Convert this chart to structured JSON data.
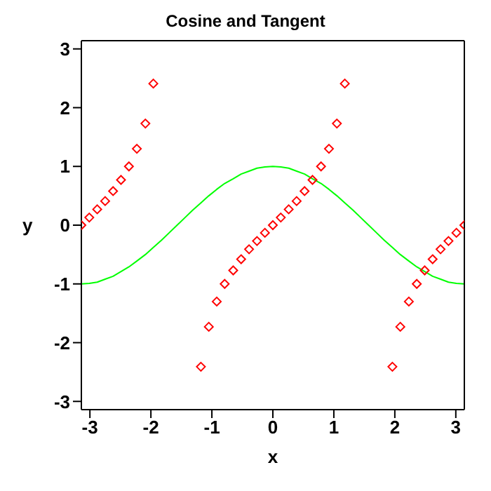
{
  "chart_data": {
    "type": "line",
    "title": "Cosine and Tangent",
    "xlabel": "x",
    "ylabel": "y",
    "x": [
      -3.14,
      -3.01,
      -2.88,
      -2.75,
      -2.62,
      -2.49,
      -2.36,
      -2.23,
      -2.09,
      -1.96,
      -1.83,
      -1.7,
      -1.57,
      -1.44,
      -1.31,
      -1.18,
      -1.05,
      -0.92,
      -0.79,
      -0.65,
      -0.52,
      -0.39,
      -0.26,
      -0.13,
      0,
      0.13,
      0.26,
      0.39,
      0.52,
      0.65,
      0.79,
      0.92,
      1.05,
      1.18,
      1.31,
      1.44,
      1.57,
      1.7,
      1.83,
      1.96,
      2.09,
      2.23,
      2.36,
      2.49,
      2.62,
      2.75,
      2.88,
      3.01,
      3.14
    ],
    "series": [
      {
        "type": "line",
        "color": "#00ff00",
        "marker": "none",
        "values": [
          -1,
          -0.99,
          -0.97,
          -0.92,
          -0.87,
          -0.79,
          -0.71,
          -0.61,
          -0.5,
          -0.38,
          -0.26,
          -0.13,
          0,
          0.13,
          0.26,
          0.38,
          0.5,
          0.61,
          0.71,
          0.79,
          0.87,
          0.92,
          0.97,
          0.99,
          1,
          0.99,
          0.97,
          0.92,
          0.87,
          0.79,
          0.71,
          0.61,
          0.5,
          0.38,
          0.26,
          0.13,
          0,
          -0.13,
          -0.26,
          -0.38,
          -0.5,
          -0.61,
          -0.71,
          -0.79,
          -0.87,
          -0.92,
          -0.97,
          -0.99,
          -1
        ]
      },
      {
        "type": "scatter",
        "color": "#ff0000",
        "marker": "diamond",
        "values": [
          0,
          0.13,
          0.27,
          0.41,
          0.58,
          0.77,
          1,
          1.3,
          1.73,
          2.41,
          null,
          null,
          null,
          null,
          null,
          -2.41,
          -1.73,
          -1.3,
          -1,
          -0.77,
          -0.58,
          -0.41,
          -0.27,
          -0.13,
          0,
          0.13,
          0.27,
          0.41,
          0.58,
          0.77,
          1,
          1.3,
          1.73,
          2.41,
          null,
          null,
          null,
          null,
          null,
          -2.41,
          -1.73,
          -1.3,
          -1,
          -0.77,
          -0.58,
          -0.41,
          -0.27,
          -0.13,
          0
        ]
      }
    ],
    "xlim": [
      -3.14,
      3.14
    ],
    "xticks": [
      -3,
      -2,
      -1,
      0,
      1,
      2,
      3
    ],
    "ylim": [
      -3.14,
      3.14
    ],
    "yticks": [
      -3,
      -2,
      -1,
      0,
      1,
      2,
      3
    ]
  }
}
